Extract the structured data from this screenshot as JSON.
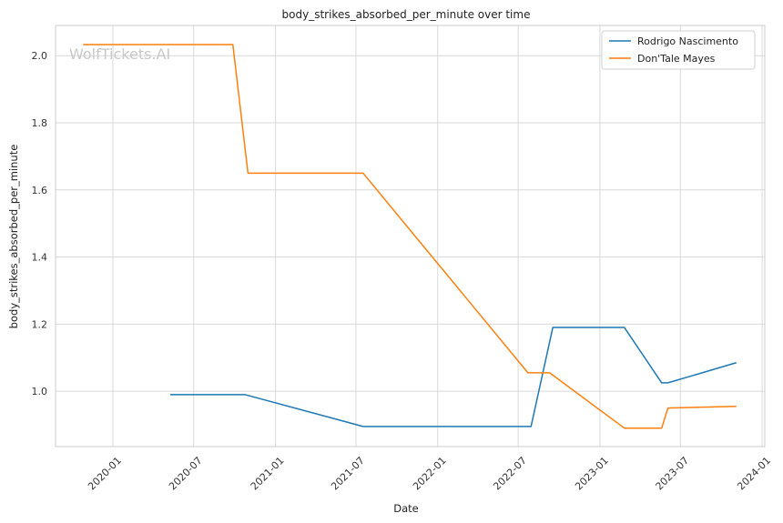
{
  "chart_data": {
    "type": "line",
    "title": "body_strikes_absorbed_per_minute over time",
    "xlabel": "Date",
    "ylabel": "body_strikes_absorbed_per_minute",
    "watermark": "WolfTickets.AI",
    "x_ticks": [
      "2020-01",
      "2020-07",
      "2021-01",
      "2021-07",
      "2022-01",
      "2022-07",
      "2023-01",
      "2023-07",
      "2024-01"
    ],
    "y_ticks": [
      "1.0",
      "1.2",
      "1.4",
      "1.6",
      "1.8",
      "2.0"
    ],
    "xlim": [
      "2019-08-25",
      "2024-01-07"
    ],
    "ylim": [
      0.835,
      2.09
    ],
    "grid": true,
    "legend_position": "top-right",
    "series": [
      {
        "name": "Rodrigo Nascimento",
        "color": "#1f77b4",
        "points": [
          [
            "2020-05-09",
            0.99
          ],
          [
            "2020-10-24",
            0.99
          ],
          [
            "2021-07-17",
            0.895
          ],
          [
            "2022-07-30",
            0.895
          ],
          [
            "2022-09-17",
            1.19
          ],
          [
            "2023-02-25",
            1.19
          ],
          [
            "2023-05-20",
            1.025
          ],
          [
            "2023-06-03",
            1.025
          ],
          [
            "2023-11-04",
            1.085
          ]
        ]
      },
      {
        "name": "Don'Tale Mayes",
        "color": "#ff7f0e",
        "points": [
          [
            "2019-10-26",
            2.033
          ],
          [
            "2020-09-27",
            2.033
          ],
          [
            "2020-10-31",
            1.65
          ],
          [
            "2021-07-17",
            1.65
          ],
          [
            "2022-07-23",
            1.055
          ],
          [
            "2022-09-10",
            1.055
          ],
          [
            "2023-02-25",
            0.89
          ],
          [
            "2023-05-20",
            0.89
          ],
          [
            "2023-06-03",
            0.95
          ],
          [
            "2023-11-04",
            0.955
          ]
        ]
      }
    ]
  }
}
